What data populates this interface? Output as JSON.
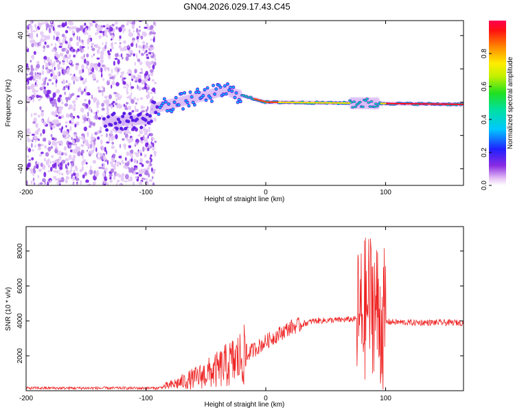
{
  "title": "GN04.2026.029.17.43.C45",
  "chart_data": [
    {
      "type": "heatmap",
      "xlabel": "Height of straight line (km)",
      "ylabel": "Frequency (Hz)",
      "xlim": [
        -200,
        165
      ],
      "ylim": [
        -50,
        49
      ],
      "xticks": [
        -200,
        -100,
        0,
        100
      ],
      "yticks": [
        -40,
        -20,
        0,
        20,
        40
      ],
      "colorbar": {
        "label": "Normalized spectral amplitude",
        "range": [
          0,
          1
        ],
        "ticks": [
          "0.0",
          "0.2",
          "0.4",
          "0.6",
          "0.8"
        ]
      },
      "features": [
        {
          "name": "noise-scatter",
          "x_range": [
            -200,
            -92
          ],
          "y_range": [
            -50,
            49
          ]
        },
        {
          "name": "signal-ridge",
          "x_range": [
            -135,
            165
          ],
          "y_center": 0
        }
      ]
    },
    {
      "type": "line",
      "xlabel": "Height of straight line (km)",
      "ylabel": "SNR (10 * v/v)",
      "xlim": [
        -200,
        165
      ],
      "ylim": [
        0,
        9400
      ],
      "xticks": [
        -200,
        -100,
        0,
        100
      ],
      "yticks": [
        2000,
        4000,
        6000,
        8000
      ],
      "series": [
        {
          "name": "SNR",
          "color": "#ee2222",
          "x": [
            -200,
            -150,
            -100,
            -90,
            -80,
            -60,
            -40,
            -20,
            0,
            20,
            40,
            60,
            75,
            80,
            85,
            90,
            95,
            100,
            120,
            140,
            165
          ],
          "y": [
            150,
            150,
            150,
            150,
            300,
            700,
            1200,
            1900,
            2800,
            3600,
            4000,
            4050,
            4100,
            4200,
            5000,
            5200,
            4100,
            3950,
            3900,
            3900,
            3900
          ]
        }
      ]
    }
  ]
}
